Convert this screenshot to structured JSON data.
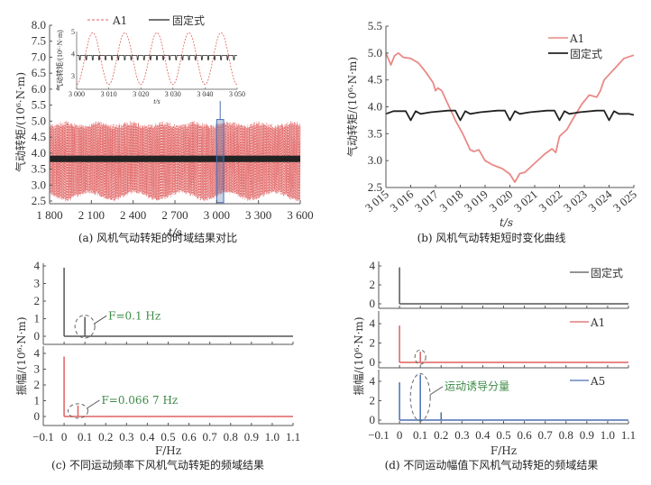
{
  "colors": {
    "a1": "#e06060",
    "a1_line_b": "#e98a86",
    "fixed": "#222222",
    "a5": "#4a6fb0",
    "annotation": "#3d8a46",
    "highlight_box": "#4a6fb0",
    "axis": "#555555"
  },
  "chart_data": [
    {
      "id": "a",
      "type": "line",
      "caption": "(a) 风机气动转矩的时域结果对比",
      "xlabel": "t/s",
      "ylabel": "气动转矩/(10⁶·N·m)",
      "xlim": [
        1800,
        3600
      ],
      "ylim": [
        2.5,
        8.0
      ],
      "xticks": [
        "1 800",
        "2 100",
        "2 400",
        "2 700",
        "3 000",
        "3 300",
        "3 600"
      ],
      "xtick_values": [
        1800,
        2100,
        2400,
        2700,
        3000,
        3300,
        3600
      ],
      "yticks": [
        "2.5",
        "3.0",
        "3.5",
        "4.0",
        "4.5",
        "5.0",
        "5.5",
        "6.0",
        "6.5",
        "7.0",
        "7.5",
        "8.0"
      ],
      "ytick_values": [
        2.5,
        3.0,
        3.5,
        4.0,
        4.5,
        5.0,
        5.5,
        6.0,
        6.5,
        7.0,
        7.5,
        8.0
      ],
      "legend": [
        {
          "name": "A1",
          "style": "dashed"
        },
        {
          "name": "固定式",
          "style": "solid"
        }
      ],
      "legend_position": "top",
      "series": [
        {
          "name": "A1",
          "description": "oscillation between ~2.6 and ~5.0, period 10 s",
          "min": 2.6,
          "max": 5.0,
          "period_s": 10
        },
        {
          "name": "固定式",
          "description": "near constant ~3.85 with small dips",
          "mean": 3.85
        }
      ],
      "highlight_window": [
        3000,
        3050
      ],
      "inset": {
        "xlabel": "t/s",
        "ylabel": "气动转矩/(10⁶·N·m)",
        "xlim": [
          3000,
          3050
        ],
        "ylim": [
          2.5,
          5.0
        ],
        "xticks": [
          "3 000",
          "3 010",
          "3 020",
          "3 030",
          "3 040",
          "3 050"
        ],
        "xtick_values": [
          3000,
          3010,
          3020,
          3030,
          3040,
          3050
        ],
        "yticks": [
          "3",
          "4",
          "5"
        ],
        "ytick_values": [
          3,
          4,
          5
        ],
        "series": [
          {
            "name": "A1",
            "peaks_t": [
              3005,
              3015,
              3025,
              3035,
              3045
            ],
            "peak": 4.95,
            "troughs_t": [
              3000,
              3010,
              3020,
              3030,
              3040,
              3050
            ],
            "trough": 2.6
          },
          {
            "name": "固定式",
            "mean": 3.9,
            "dip": 3.72,
            "dip_period_s": 2
          }
        ]
      }
    },
    {
      "id": "b",
      "type": "line",
      "caption": "(b) 风机气动转矩短时变化曲线",
      "xlabel": "t/s",
      "ylabel": "气动转矩/(10⁶·N·m)",
      "xlim": [
        3015,
        3025
      ],
      "ylim": [
        2.5,
        5.5
      ],
      "xticks": [
        "3 015",
        "3 016",
        "3 017",
        "3 018",
        "3 019",
        "3 020",
        "3 021",
        "3 022",
        "3 023",
        "3 024",
        "3 025"
      ],
      "xtick_values": [
        3015,
        3016,
        3017,
        3018,
        3019,
        3020,
        3021,
        3022,
        3023,
        3024,
        3025
      ],
      "yticks": [
        "2.5",
        "3.0",
        "3.5",
        "4.0",
        "4.5",
        "5.0",
        "5.5"
      ],
      "ytick_values": [
        2.5,
        3.0,
        3.5,
        4.0,
        4.5,
        5.0,
        5.5
      ],
      "legend": [
        {
          "name": "A1"
        },
        {
          "name": "固定式"
        }
      ],
      "legend_position": "top-right",
      "series": [
        {
          "name": "A1",
          "x": [
            3015.0,
            3015.2,
            3015.35,
            3015.5,
            3015.7,
            3016.0,
            3016.3,
            3016.6,
            3016.9,
            3017.0,
            3017.1,
            3017.25,
            3017.5,
            3017.8,
            3018.1,
            3018.4,
            3018.55,
            3018.75,
            3019.0,
            3019.3,
            3019.7,
            3020.0,
            3020.2,
            3020.4,
            3020.6,
            3021.0,
            3021.4,
            3021.7,
            3021.85,
            3022.0,
            3022.3,
            3022.6,
            3022.9,
            3023.2,
            3023.5,
            3023.65,
            3023.8,
            3024.0,
            3024.3,
            3024.6,
            3025.0
          ],
          "y": [
            5.0,
            4.78,
            4.95,
            5.0,
            4.92,
            4.9,
            4.82,
            4.65,
            4.45,
            4.3,
            4.35,
            4.3,
            4.05,
            3.75,
            3.5,
            3.2,
            3.17,
            3.2,
            3.0,
            2.92,
            2.85,
            2.75,
            2.6,
            2.76,
            2.78,
            2.95,
            3.12,
            3.22,
            3.15,
            3.45,
            3.58,
            3.82,
            4.05,
            4.22,
            4.18,
            4.3,
            4.5,
            4.6,
            4.75,
            4.9,
            4.96
          ]
        },
        {
          "name": "固定式",
          "x": [
            3015.0,
            3015.3,
            3015.8,
            3016.0,
            3016.2,
            3016.4,
            3016.8,
            3017.5,
            3017.8,
            3018.0,
            3018.2,
            3018.4,
            3018.8,
            3019.5,
            3019.8,
            3020.0,
            3020.2,
            3020.4,
            3020.8,
            3021.5,
            3021.8,
            3022.0,
            3022.2,
            3022.4,
            3022.8,
            3023.5,
            3023.8,
            3024.0,
            3024.2,
            3024.4,
            3024.8,
            3025.0
          ],
          "y": [
            3.87,
            3.92,
            3.92,
            3.75,
            3.92,
            3.87,
            3.9,
            3.93,
            3.93,
            3.75,
            3.92,
            3.87,
            3.9,
            3.93,
            3.93,
            3.75,
            3.92,
            3.87,
            3.9,
            3.93,
            3.93,
            3.75,
            3.92,
            3.87,
            3.9,
            3.93,
            3.93,
            3.75,
            3.92,
            3.87,
            3.87,
            3.85
          ]
        }
      ]
    },
    {
      "id": "c",
      "type": "line",
      "caption": "(c) 不同运动频率下风机气动转矩的频域结果",
      "xlabel": "F/Hz",
      "ylabel": "振幅/(10⁶·N·m)",
      "xlim": [
        -0.1,
        1.1
      ],
      "xticks": [
        "−0.1",
        "0",
        "0.1",
        "0.2",
        "0.3",
        "0.4",
        "0.5",
        "0.6",
        "0.7",
        "0.8",
        "0.9",
        "1.0",
        "1.1"
      ],
      "xtick_values": [
        -0.1,
        0,
        0.1,
        0.2,
        0.3,
        0.4,
        0.5,
        0.6,
        0.7,
        0.8,
        0.9,
        1.0,
        1.1
      ],
      "subplots": [
        {
          "ylim": [
            0,
            4
          ],
          "yticks": [
            "0",
            "1",
            "2",
            "3",
            "4"
          ],
          "ytick_values": [
            0,
            1,
            2,
            3,
            4
          ],
          "color_key": "fixed_gray",
          "spikes": [
            {
              "f": 0,
              "amp": 3.9
            },
            {
              "f": 0.1,
              "amp": 1.1
            }
          ],
          "annotation": "F=0.1 Hz",
          "annotation_f": 0.1
        },
        {
          "ylim": [
            0,
            4
          ],
          "yticks": [
            "0",
            "1",
            "2",
            "3",
            "4"
          ],
          "ytick_values": [
            0,
            1,
            2,
            3,
            4
          ],
          "color_key": "a1",
          "spikes": [
            {
              "f": 0,
              "amp": 3.8
            },
            {
              "f": 0.0667,
              "amp": 0.7
            }
          ],
          "annotation": "F=0.066 7 Hz",
          "annotation_f": 0.0667
        }
      ]
    },
    {
      "id": "d",
      "type": "line",
      "caption": "(d) 不同运动幅值下风机气动转矩的频域结果",
      "xlabel": "F/Hz",
      "ylabel": "振幅/(10⁶·N·m)",
      "xlim": [
        -0.1,
        1.1
      ],
      "xticks": [
        "−0.1",
        "0",
        "0.1",
        "0.2",
        "0.3",
        "0.4",
        "0.5",
        "0.6",
        "0.7",
        "0.8",
        "0.9",
        "1.0",
        "1.1"
      ],
      "xtick_values": [
        -0.1,
        0,
        0.1,
        0.2,
        0.3,
        0.4,
        0.5,
        0.6,
        0.7,
        0.8,
        0.9,
        1.0,
        1.1
      ],
      "subplots": [
        {
          "legend": "固定式",
          "ylim": [
            0,
            4
          ],
          "yticks": [
            "0",
            "2",
            "4"
          ],
          "ytick_values": [
            0,
            2,
            4
          ],
          "color_key": "fixed_gray",
          "spikes": [
            {
              "f": 0,
              "amp": 3.85
            }
          ]
        },
        {
          "legend": "A1",
          "ylim": [
            0,
            4
          ],
          "yticks": [
            "0",
            "2",
            "4"
          ],
          "ytick_values": [
            0,
            2,
            4
          ],
          "color_key": "a1",
          "spikes": [
            {
              "f": 0,
              "amp": 3.8
            },
            {
              "f": 0.1,
              "amp": 1.1
            }
          ],
          "circle_f": 0.1
        },
        {
          "legend": "A5",
          "ylim": [
            0,
            4
          ],
          "yticks": [
            "0",
            "2",
            "4"
          ],
          "ytick_values": [
            0,
            2,
            4
          ],
          "color_key": "a5",
          "spikes": [
            {
              "f": 0,
              "amp": 3.9
            },
            {
              "f": 0.1,
              "amp": 4.7
            },
            {
              "f": 0.2,
              "amp": 0.8
            }
          ],
          "annotation": "运动诱导分量",
          "annotation_f": 0.1
        }
      ]
    }
  ]
}
